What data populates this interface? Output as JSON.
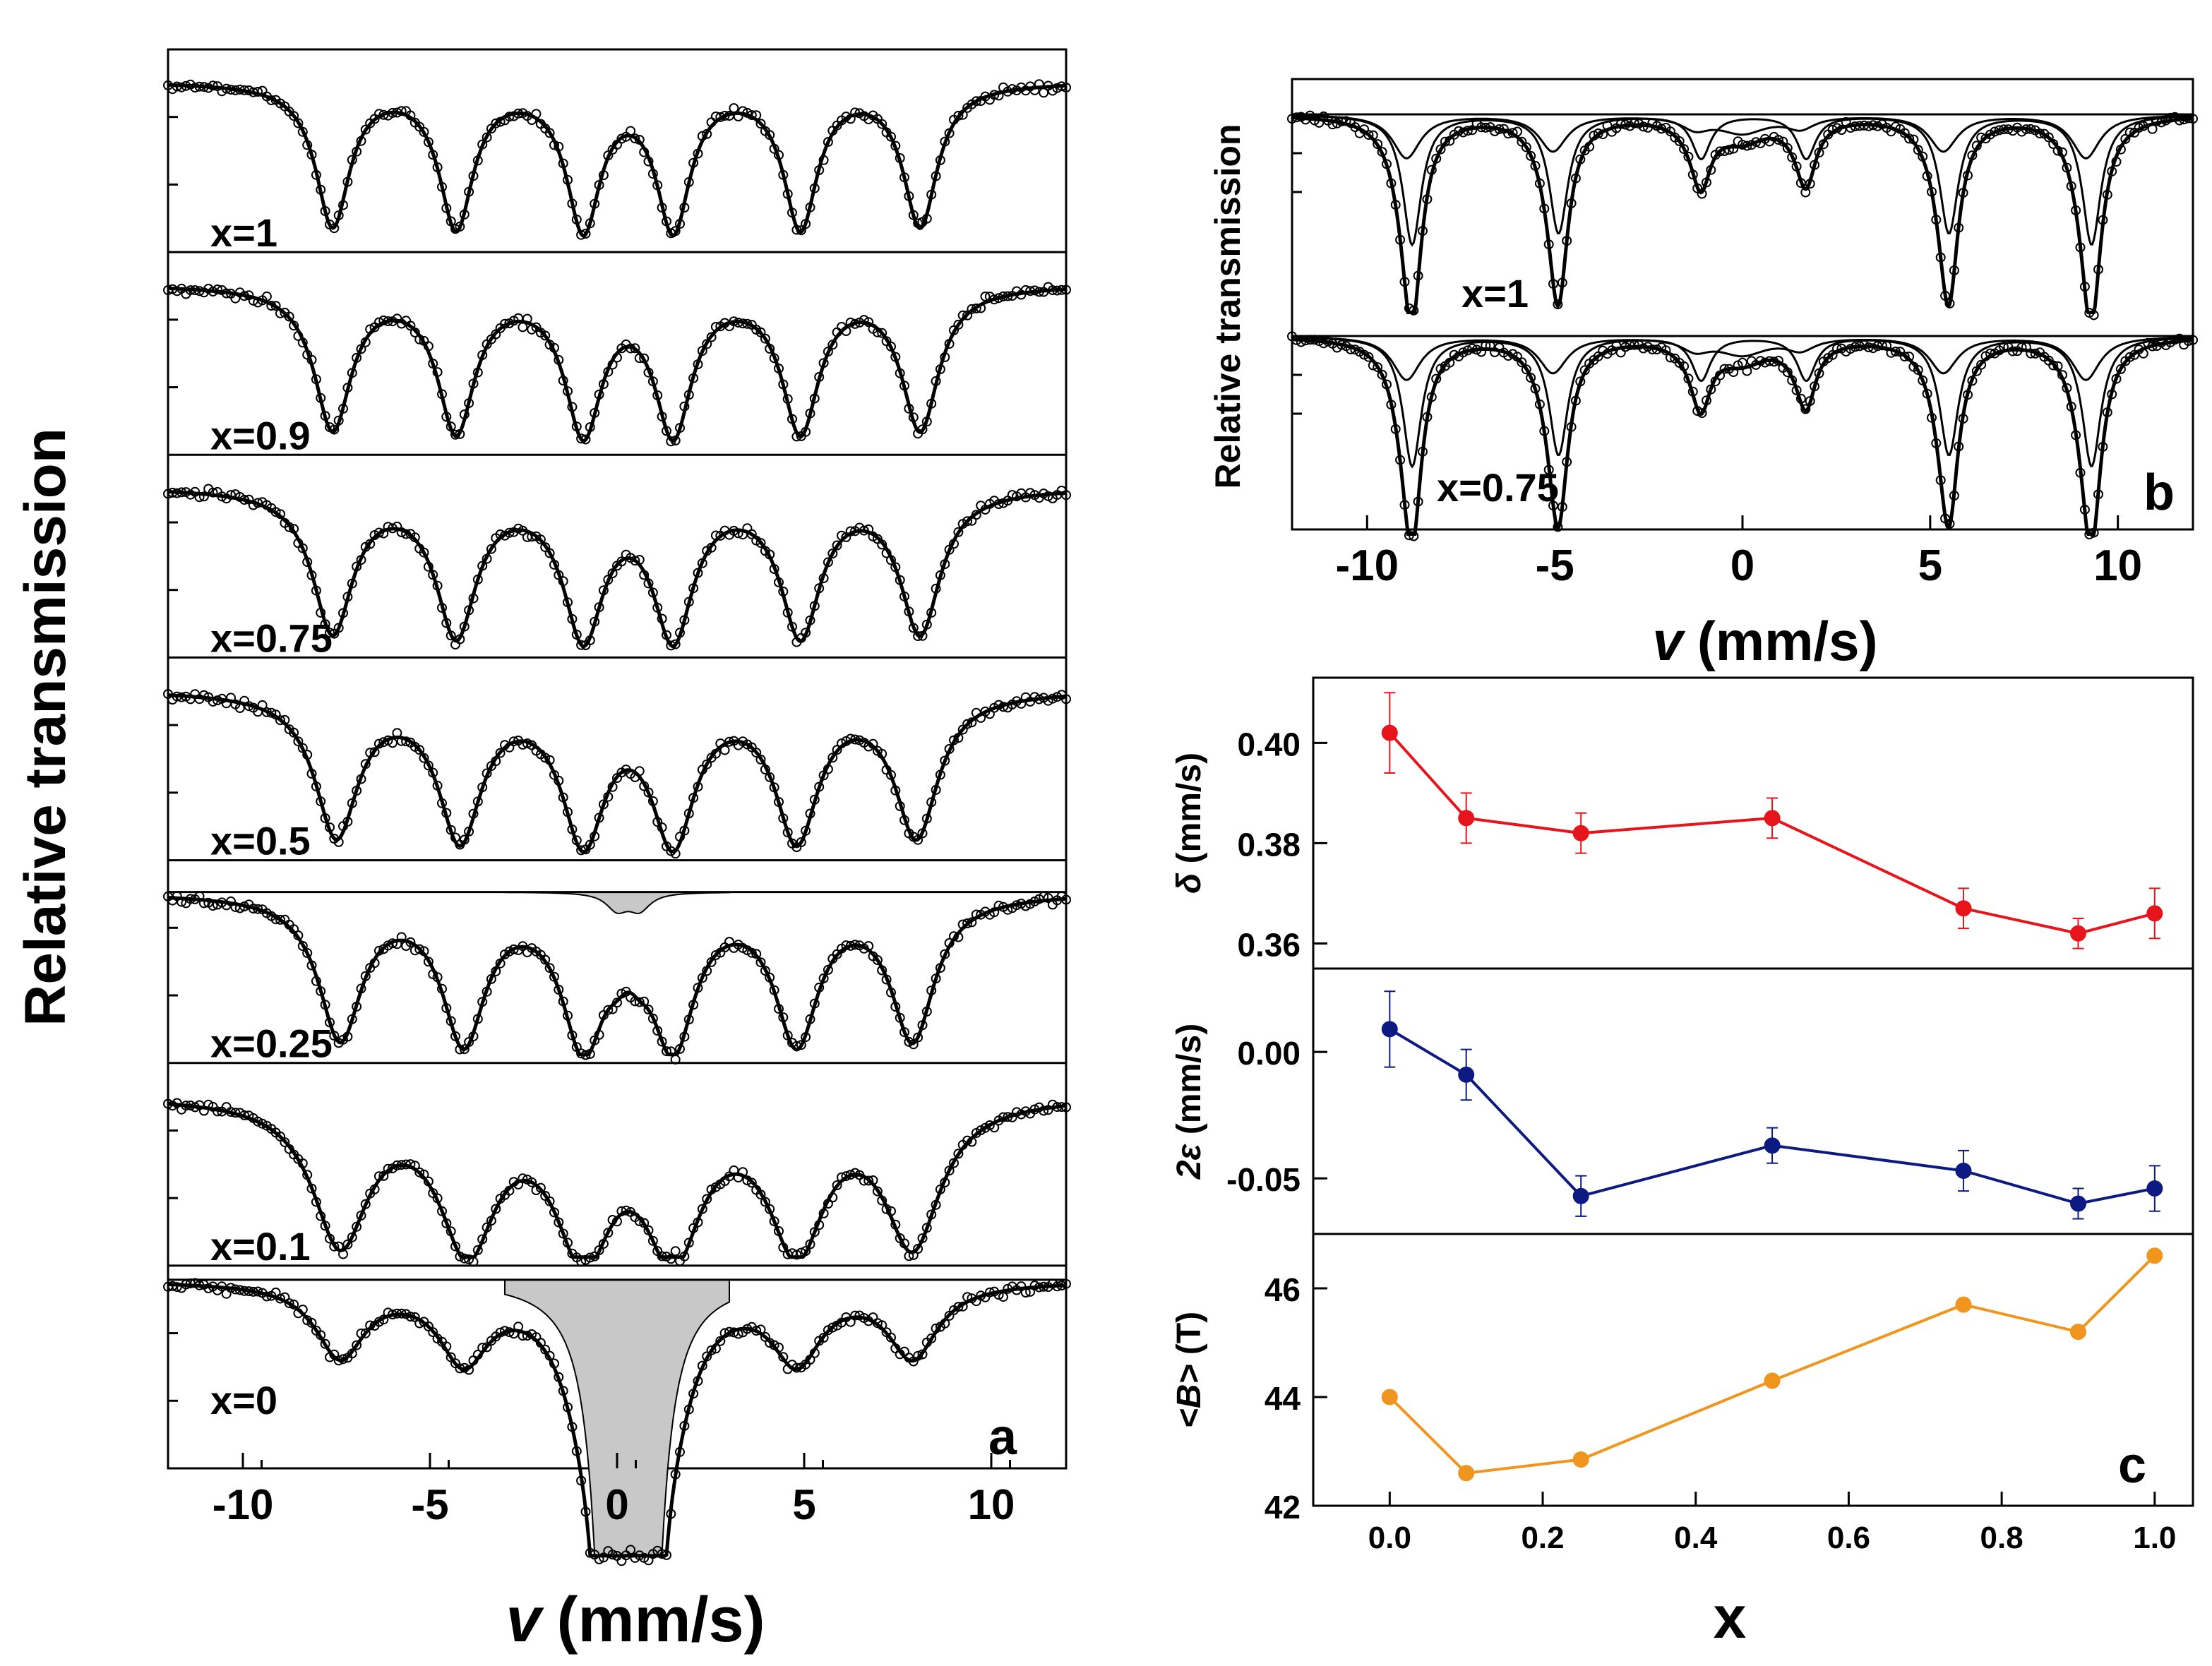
{
  "chart_data": [
    {
      "panel": "a",
      "type": "line",
      "ylabel": "Relative transmission",
      "xlabel_var": "v",
      "xlabel_unit": "(mm/s)",
      "xlim": [
        -12,
        12
      ],
      "xticks": [
        -10,
        -5,
        0,
        5,
        10
      ],
      "series": [
        {
          "name": "x=1",
          "lines_v": [
            -7.6,
            -4.3,
            -0.9,
            1.5,
            4.9,
            8.1
          ],
          "depth": [
            1.0,
            1.0,
            1.0,
            1.0,
            1.0,
            1.0
          ],
          "width": 0.55
        },
        {
          "name": "x=0.9",
          "lines_v": [
            -7.6,
            -4.3,
            -0.9,
            1.5,
            4.9,
            8.1
          ],
          "depth": [
            1.0,
            1.0,
            1.0,
            1.0,
            1.0,
            1.0
          ],
          "width": 0.6
        },
        {
          "name": "x=0.75",
          "lines_v": [
            -7.6,
            -4.3,
            -0.9,
            1.5,
            4.9,
            8.1
          ],
          "depth": [
            1.0,
            1.0,
            1.0,
            1.0,
            1.0,
            1.0
          ],
          "width": 0.65
        },
        {
          "name": "x=0.5",
          "lines_v": [
            -7.5,
            -4.2,
            -0.9,
            1.5,
            4.8,
            8.0
          ],
          "depth": [
            1.0,
            1.0,
            1.0,
            1.0,
            1.0,
            1.0
          ],
          "width": 0.7
        },
        {
          "name": "x=0.25",
          "lines_v": [
            -7.4,
            -4.1,
            -0.9,
            1.5,
            4.8,
            7.9
          ],
          "depth": [
            1.0,
            1.0,
            1.0,
            1.0,
            1.0,
            1.0
          ],
          "width": 0.7,
          "shaded_doublet": [
            0.0,
            0.6
          ]
        },
        {
          "name": "x=0.1",
          "lines_v": [
            -7.4,
            -4.0,
            -0.9,
            1.5,
            4.8,
            7.9
          ],
          "depth": [
            1.0,
            1.0,
            1.0,
            1.0,
            1.0,
            1.0
          ],
          "width": 0.9
        },
        {
          "name": "x=0",
          "lines_v": [
            -7.4,
            -4.1,
            -0.9,
            1.5,
            4.8,
            7.9
          ],
          "depth": [
            0.3,
            0.3,
            0.25,
            0.25,
            0.3,
            0.3
          ],
          "width": 0.8,
          "shaded_doublet": [
            -0.15,
            0.75
          ]
        }
      ],
      "panel_letter": "a"
    },
    {
      "panel": "b",
      "type": "line",
      "ylabel": "Relative transmission",
      "xlabel_var": "v",
      "xlabel_unit": "(mm/s)",
      "xlim": [
        -12,
        12
      ],
      "xticks": [
        -10,
        -5,
        0,
        5,
        10
      ],
      "series": [
        {
          "name": "x=1",
          "lines_v": [
            -8.8,
            -4.9,
            -1.1,
            1.7,
            5.5,
            9.3
          ]
        },
        {
          "name": "x=0.75",
          "lines_v": [
            -8.8,
            -4.9,
            -1.1,
            1.7,
            5.5,
            9.3
          ]
        }
      ],
      "panel_letter": "b"
    },
    {
      "panel": "c",
      "type": "line",
      "x": [
        0.0,
        0.1,
        0.25,
        0.5,
        0.75,
        0.9,
        1.0
      ],
      "xlabel": "x",
      "xlim": [
        -0.1,
        1.05
      ],
      "xticks": [
        "0.0",
        "0.2",
        "0.4",
        "0.6",
        "0.8",
        "1.0"
      ],
      "series": [
        {
          "name": "delta",
          "ylabel_sym": "δ",
          "ylabel_unit": " (mm/s)",
          "color": "#e8141c",
          "values": [
            0.402,
            0.385,
            0.382,
            0.385,
            0.367,
            0.362,
            0.366
          ],
          "errors": [
            0.008,
            0.005,
            0.004,
            0.004,
            0.004,
            0.003,
            0.005
          ],
          "ylim": [
            0.355,
            0.413
          ],
          "yticks": [
            "0.36",
            "0.38",
            "0.40"
          ]
        },
        {
          "name": "2eps",
          "ylabel_sym": "2ε",
          "ylabel_unit": " (mm/s)",
          "color": "#0d1a82",
          "values": [
            0.009,
            -0.009,
            -0.057,
            -0.037,
            -0.047,
            -0.06,
            -0.054
          ],
          "errors": [
            0.015,
            0.01,
            0.008,
            0.007,
            0.008,
            0.006,
            0.009
          ],
          "ylim": [
            -0.072,
            0.033
          ],
          "yticks": [
            "0.00",
            "-0.05"
          ]
        },
        {
          "name": "B",
          "ylabel_sym": "<B>",
          "ylabel_unit": " (T)",
          "color": "#f0961e",
          "values": [
            44.0,
            42.6,
            42.85,
            44.3,
            45.7,
            45.2,
            46.6
          ],
          "ylim": [
            42.0,
            47.0
          ],
          "yticks": [
            "42",
            "44",
            "46"
          ]
        }
      ],
      "panel_letter": "c"
    }
  ]
}
